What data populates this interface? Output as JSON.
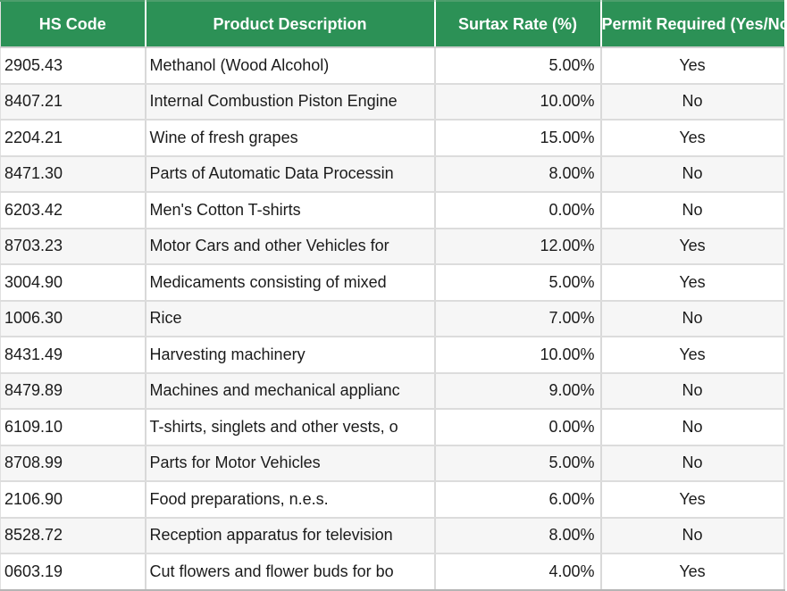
{
  "chart_data": {
    "type": "table",
    "columns": [
      "HS Code",
      "Product Description",
      "Surtax Rate (%)",
      "Permit Required (Yes/No)"
    ],
    "rows": [
      [
        "2905.43",
        "Methanol (Wood Alcohol)",
        "5.00%",
        "Yes"
      ],
      [
        "8407.21",
        "Internal Combustion Piston Engine",
        "10.00%",
        "No"
      ],
      [
        "2204.21",
        "Wine of fresh grapes",
        "15.00%",
        "Yes"
      ],
      [
        "8471.30",
        "Parts of Automatic Data Processin",
        "8.00%",
        "No"
      ],
      [
        "6203.42",
        "Men's Cotton T-shirts",
        "0.00%",
        "No"
      ],
      [
        "8703.23",
        "Motor Cars and other Vehicles for",
        "12.00%",
        "Yes"
      ],
      [
        "3004.90",
        "Medicaments consisting of mixed",
        "5.00%",
        "Yes"
      ],
      [
        "1006.30",
        "Rice",
        "7.00%",
        "No"
      ],
      [
        "8431.49",
        "Harvesting machinery",
        "10.00%",
        "Yes"
      ],
      [
        "8479.89",
        "Machines and mechanical applianc",
        "9.00%",
        "No"
      ],
      [
        "6109.10",
        "T-shirts, singlets and other vests, o",
        "0.00%",
        "No"
      ],
      [
        "8708.99",
        "Parts for Motor Vehicles",
        "5.00%",
        "No"
      ],
      [
        "2106.90",
        "Food preparations, n.e.s.",
        "6.00%",
        "Yes"
      ],
      [
        "8528.72",
        "Reception apparatus for television",
        "8.00%",
        "No"
      ],
      [
        "0603.19",
        "Cut flowers and flower buds for bo",
        "4.00%",
        "Yes"
      ]
    ],
    "surtax_rates_numeric": [
      5.0,
      10.0,
      15.0,
      8.0,
      0.0,
      12.0,
      5.0,
      7.0,
      10.0,
      9.0,
      0.0,
      5.0,
      6.0,
      8.0,
      4.0
    ],
    "permit_required": [
      "Yes",
      "No",
      "Yes",
      "No",
      "No",
      "Yes",
      "Yes",
      "No",
      "Yes",
      "No",
      "No",
      "No",
      "Yes",
      "No",
      "Yes"
    ]
  },
  "colors": {
    "header_bg": "#2c9156",
    "header_top_edge": "#4d9e6c",
    "header_text": "#ffffff",
    "body_text": "#1b1b1b",
    "stripe": "#f6f6f6",
    "grid_border": "#d9d9d9",
    "bottom_border": "#b5b5b5"
  }
}
